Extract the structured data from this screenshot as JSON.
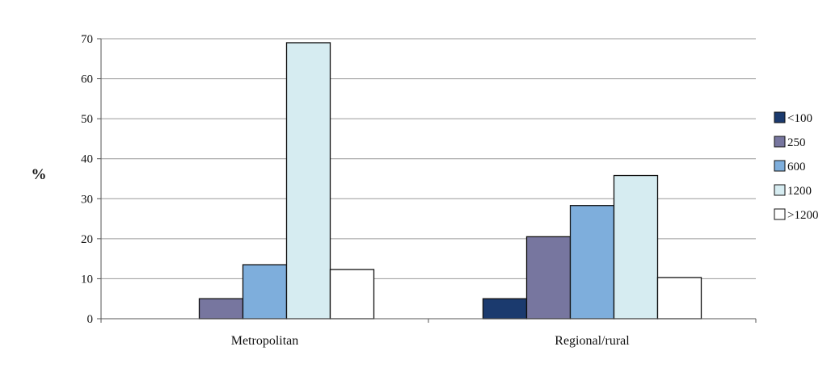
{
  "chart_data": {
    "type": "bar",
    "title": "",
    "xlabel": "",
    "ylabel": "%",
    "ylim": [
      0,
      70
    ],
    "yticks": [
      0,
      10,
      20,
      30,
      40,
      50,
      60,
      70
    ],
    "grid": true,
    "legend_position": "right",
    "categories": [
      "Metropolitan",
      "Regional/rural"
    ],
    "series": [
      {
        "name": "<100",
        "color": "#1b3a6e",
        "values": [
          0,
          5
        ]
      },
      {
        "name": "250",
        "color": "#77769f",
        "values": [
          5,
          20.5
        ]
      },
      {
        "name": "600",
        "color": "#7eaedc",
        "values": [
          13.5,
          28.3
        ]
      },
      {
        "name": "1200",
        "color": "#d6ecf1",
        "values": [
          69,
          35.8
        ]
      },
      {
        "name": ">1200",
        "color": "#ffffff",
        "values": [
          12.3,
          10.3
        ]
      }
    ]
  }
}
